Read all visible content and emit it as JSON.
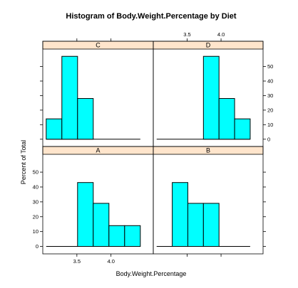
{
  "chart_data": {
    "type": "bar",
    "title": "Histogram of Body.Weight.Percentage by Diet",
    "xlabel": "Body.Weight.Percentage",
    "ylabel": "Percent of Total",
    "x_ticks": [
      "3.5",
      "4.0"
    ],
    "y_ticks": [
      "0",
      "10",
      "20",
      "30",
      "40",
      "50"
    ],
    "xlim": [
      3.0,
      4.62
    ],
    "ylim": [
      -5,
      62
    ],
    "bin_edges": [
      3.05,
      3.28,
      3.51,
      3.74,
      3.97,
      4.2,
      4.43
    ],
    "bar_color": "#00ffff",
    "strip_color": "#ffe5cc",
    "layout": "2x2",
    "panels": [
      {
        "name": "C",
        "values": [
          14,
          57,
          28,
          0,
          0,
          0
        ]
      },
      {
        "name": "D",
        "values": [
          0,
          0,
          0,
          57,
          28,
          14
        ]
      },
      {
        "name": "A",
        "values": [
          0,
          0,
          43,
          29,
          14,
          14
        ]
      },
      {
        "name": "B",
        "values": [
          0,
          43,
          29,
          29,
          0,
          0
        ]
      }
    ]
  }
}
